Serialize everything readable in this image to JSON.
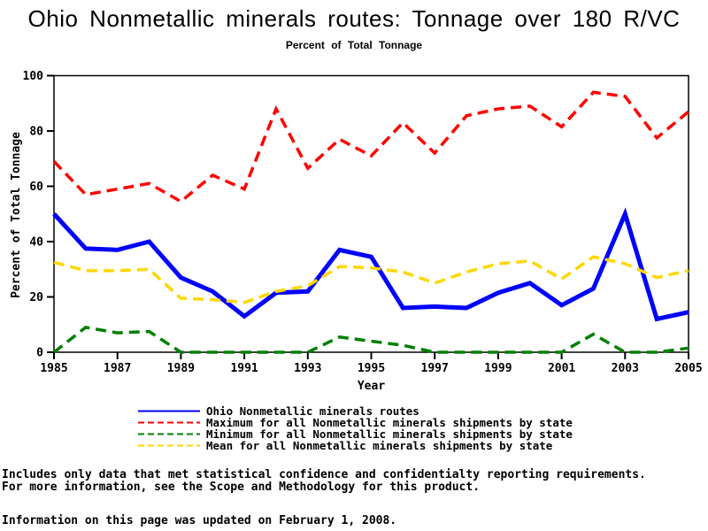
{
  "header": {
    "title": "Ohio Nonmetallic minerals routes: Tonnage over 180 R/VC",
    "subtitle": "Percent of Total Tonnage"
  },
  "chart_data": {
    "type": "line",
    "x": [
      1985,
      1986,
      1987,
      1988,
      1989,
      1990,
      1991,
      1992,
      1993,
      1994,
      1995,
      1996,
      1997,
      1998,
      1999,
      2000,
      2001,
      2002,
      2003,
      2004,
      2005
    ],
    "series": [
      {
        "name": "Ohio Nonmetallic minerals routes",
        "color": "#0000ff",
        "style": "solid",
        "values": [
          50,
          37.5,
          37,
          40,
          27,
          22,
          13,
          21.5,
          22,
          37,
          34.5,
          16,
          16.5,
          16,
          21.5,
          25,
          17,
          23,
          50,
          12,
          14.5
        ]
      },
      {
        "name": "Maximum for all Nonmetallic minerals shipments by state",
        "color": "#ff0000",
        "style": "dashed",
        "values": [
          69,
          57,
          59,
          61,
          54.5,
          64,
          59,
          88,
          66.5,
          77,
          71,
          83,
          72,
          85.5,
          88,
          89,
          81.5,
          94,
          92.5,
          77.5,
          87
        ]
      },
      {
        "name": "Minimum for all Nonmetallic minerals shipments by state",
        "color": "#008000",
        "style": "dashed",
        "values": [
          0,
          9,
          7,
          7.5,
          0,
          0,
          0,
          0,
          0,
          5.5,
          4,
          2.5,
          0,
          0,
          0,
          0,
          0,
          6.5,
          0,
          0,
          1.5
        ]
      },
      {
        "name": "Mean for all Nonmetallic minerals shipments by state",
        "color": "#ffd700",
        "style": "dashed",
        "values": [
          32.5,
          29.5,
          29.5,
          30,
          19.5,
          19,
          18,
          22,
          24,
          31,
          30.5,
          29,
          25,
          29,
          32,
          33,
          26.5,
          34.5,
          32,
          27,
          29.5
        ]
      }
    ],
    "xlabel": "Year",
    "ylabel": "Percent of Total Tonnage",
    "ylim": [
      0,
      100
    ],
    "xlim": [
      1985,
      2005
    ],
    "yticks": [
      0,
      20,
      40,
      60,
      80,
      100
    ],
    "xticks": [
      1985,
      1987,
      1989,
      1991,
      1993,
      1995,
      1997,
      1999,
      2001,
      2003,
      2005
    ],
    "grid": false,
    "legend_position": "bottom"
  },
  "footnotes": {
    "line1": "Includes only data that met statistical confidence and confidentialty reporting requirements.",
    "line2": "For more information, see the Scope and Methodology for this product.",
    "updated": "Information on this page was updated on February 1, 2008."
  }
}
